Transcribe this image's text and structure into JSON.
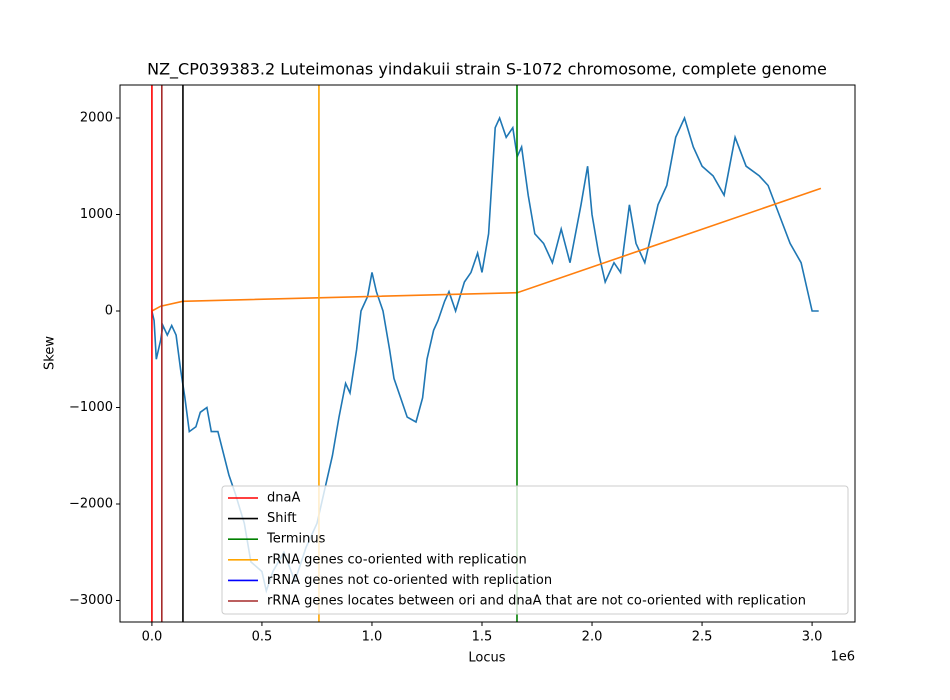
{
  "chart_data": {
    "type": "line",
    "title": "NZ_CP039383.2 Luteimonas yindakuii strain S-1072 chromosome, complete genome",
    "x_label": "Locus",
    "y_label": "Skew",
    "x_offset_label": "1e6",
    "xlim": [
      -145000,
      3195000
    ],
    "ylim": [
      -3223,
      2342
    ],
    "xticks": [
      {
        "value": 0,
        "label": "0.0"
      },
      {
        "value": 500000,
        "label": "0.5"
      },
      {
        "value": 1000000,
        "label": "1.0"
      },
      {
        "value": 1500000,
        "label": "1.5"
      },
      {
        "value": 2000000,
        "label": "2.0"
      },
      {
        "value": 2500000,
        "label": "2.5"
      },
      {
        "value": 3000000,
        "label": "3.0"
      }
    ],
    "yticks": [
      {
        "value": -3000,
        "label": "−3000"
      },
      {
        "value": -2000,
        "label": "−2000"
      },
      {
        "value": -1000,
        "label": "−1000"
      },
      0,
      1000,
      2000
    ],
    "series": [
      {
        "color": "#1f77b4",
        "x": [
          0,
          10000,
          20000,
          40000,
          50000,
          70000,
          90000,
          110000,
          130000,
          150000,
          170000,
          200000,
          220000,
          250000,
          270000,
          300000,
          350000,
          380000,
          420000,
          450000,
          500000,
          520000,
          550000,
          600000,
          650000,
          700000,
          750000,
          780000,
          820000,
          850000,
          880000,
          900000,
          930000,
          950000,
          980000,
          1000000,
          1020000,
          1050000,
          1080000,
          1100000,
          1130000,
          1160000,
          1200000,
          1230000,
          1250000,
          1280000,
          1300000,
          1330000,
          1350000,
          1380000,
          1420000,
          1450000,
          1480000,
          1500000,
          1530000,
          1560000,
          1580000,
          1610000,
          1640000,
          1660000,
          1680000,
          1710000,
          1740000,
          1780000,
          1820000,
          1860000,
          1900000,
          1950000,
          1980000,
          2000000,
          2030000,
          2060000,
          2100000,
          2130000,
          2170000,
          2200000,
          2240000,
          2300000,
          2340000,
          2380000,
          2420000,
          2460000,
          2500000,
          2550000,
          2600000,
          2650000,
          2700000,
          2760000,
          2800000,
          2850000,
          2900000,
          2950000,
          3000000,
          3030000
        ],
        "values": [
          0,
          -100,
          -500,
          -300,
          -150,
          -250,
          -150,
          -250,
          -600,
          -900,
          -1250,
          -1200,
          -1050,
          -1000,
          -1250,
          -1250,
          -1700,
          -1900,
          -2200,
          -2600,
          -2700,
          -2900,
          -2700,
          -2500,
          -2800,
          -2450,
          -2200,
          -1900,
          -1500,
          -1100,
          -750,
          -850,
          -400,
          0,
          150,
          400,
          200,
          0,
          -400,
          -700,
          -900,
          -1100,
          -1150,
          -900,
          -500,
          -200,
          -100,
          100,
          200,
          0,
          300,
          400,
          600,
          400,
          800,
          1900,
          2000,
          1800,
          1900,
          1600,
          1700,
          1200,
          800,
          700,
          500,
          850,
          500,
          1100,
          1500,
          1000,
          600,
          300,
          500,
          400,
          1100,
          700,
          500,
          1100,
          1300,
          1800,
          2000,
          1700,
          1500,
          1400,
          1200,
          1800,
          1500,
          1400,
          1300,
          1000,
          700,
          500,
          0,
          0
        ]
      },
      {
        "color": "#ff7f0e",
        "x": [
          0,
          40000,
          140000,
          1660000,
          3040000
        ],
        "values": [
          0,
          50,
          100,
          190,
          1270
        ]
      }
    ],
    "markers": [
      {
        "name": "dnaA",
        "color": "#ff0000",
        "positions": [
          0
        ]
      },
      {
        "name": "Shift",
        "color": "#000000",
        "positions": [
          141000
        ]
      },
      {
        "name": "Terminus",
        "color": "#008000",
        "positions": [
          1659000
        ]
      },
      {
        "name": "rRNA genes co-oriented with replication",
        "color": "#ffa500",
        "positions": [
          759000
        ]
      },
      {
        "name": "rRNA genes not co-oriented with replication",
        "color": "#0000ff",
        "positions": []
      },
      {
        "name": "rRNA genes locates between ori and dnaA that are not co-oriented with replication",
        "color": "#a52a2a",
        "positions": [
          45000
        ]
      }
    ]
  }
}
